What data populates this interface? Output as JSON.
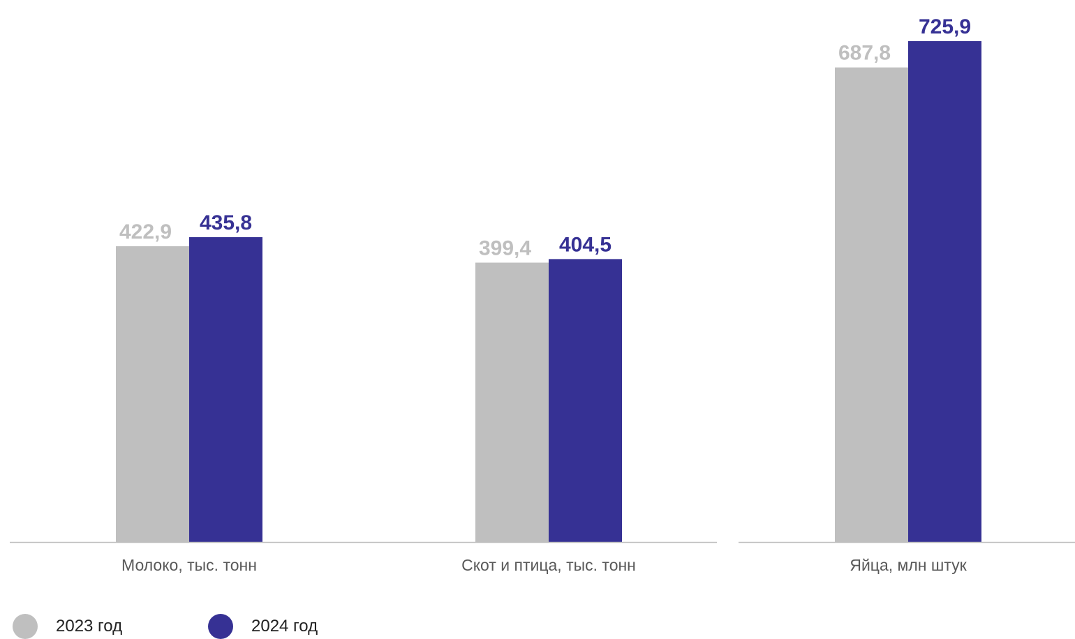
{
  "chart_data": {
    "type": "bar",
    "groups": [
      {
        "category": "Молоко, тыс. тонн",
        "values": [
          422.9,
          435.8
        ],
        "labels": [
          "422,9",
          "435,8"
        ]
      },
      {
        "category": "Скот и птица, тыс. тонн",
        "values": [
          399.4,
          404.5
        ],
        "labels": [
          "399,4",
          "404,5"
        ]
      },
      {
        "category": "Яйца, млн штук",
        "values": [
          687.8,
          725.9
        ],
        "labels": [
          "687,8",
          "725,9"
        ]
      }
    ],
    "series": [
      {
        "name": "2023 год",
        "color": "#bfbfbf",
        "label_color": "#bfbfbf"
      },
      {
        "name": "2024 год",
        "color": "#363194",
        "label_color": "#363194"
      }
    ],
    "panels": [
      {
        "groups": [
          0,
          1
        ],
        "ylim": [
          0,
          730
        ]
      },
      {
        "groups": [
          2
        ],
        "ylim": [
          0,
          740
        ]
      }
    ],
    "axis_color": "#bfbfbf",
    "legend_position": "bottom-left"
  }
}
